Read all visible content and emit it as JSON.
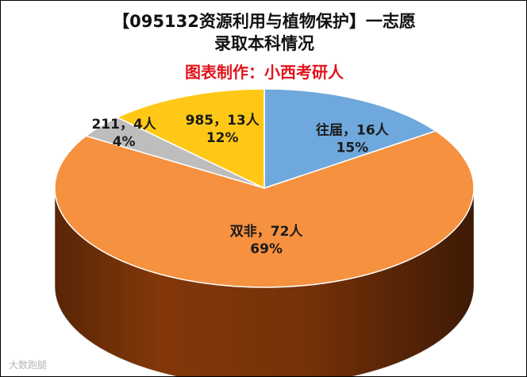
{
  "title_line1": "【095132资源利用与植物保护】一志愿",
  "title_line2": "录取本科情况",
  "subtitle": "图表制作：小西考研人",
  "watermark": "大数跑腿",
  "chart_data": {
    "type": "pie",
    "title": "【095132资源利用与植物保护】一志愿录取本科情况",
    "subtitle": "图表制作：小西考研人",
    "unit": "人",
    "slices": [
      {
        "label": "往届",
        "value": 16,
        "percent": "15%",
        "color": "#6fa8dc",
        "side_color": "#3c6e9c"
      },
      {
        "label": "双非",
        "value": 72,
        "percent": "69%",
        "color": "#f6913f",
        "side_color": "#8a3a0a"
      },
      {
        "label": "211",
        "value": 4,
        "percent": "4%",
        "color": "#bdbdbd",
        "side_color": "#6f6f6f"
      },
      {
        "label": "985",
        "value": 13,
        "percent": "12%",
        "color": "#ffc816",
        "side_color": "#9a7400"
      }
    ]
  }
}
